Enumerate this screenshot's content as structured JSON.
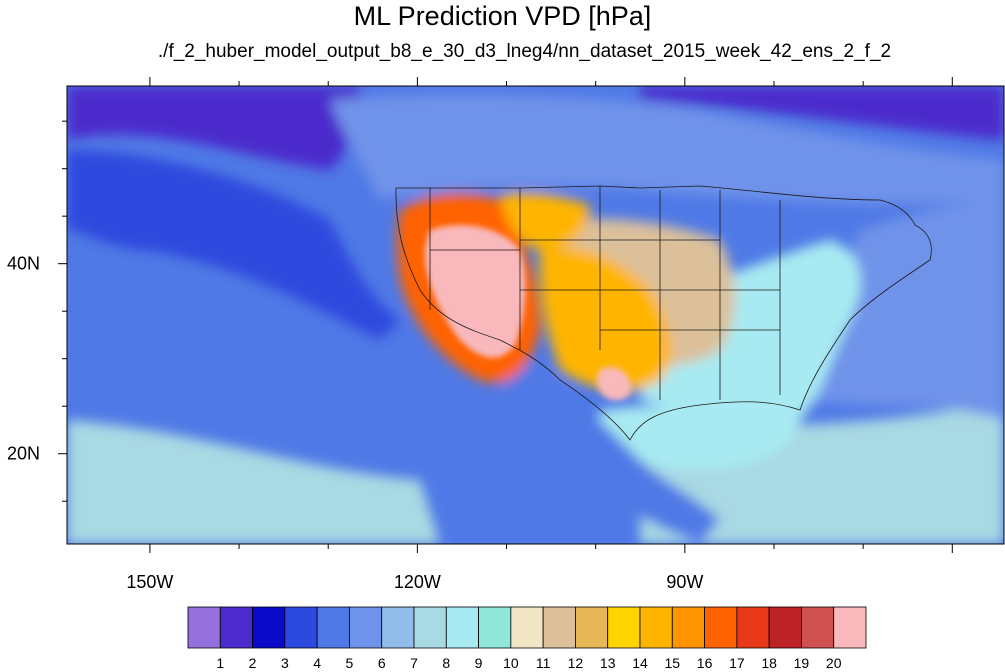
{
  "chart_data": {
    "type": "heatmap",
    "title": "ML Prediction VPD [hPa]",
    "subtitle": "./f_2_huber_model_output_b8_e_30_d3_lneg4/nn_dataset_2015_week_42_ens_2_f_2",
    "x_ticks": [
      {
        "value": -150,
        "label": "150W"
      },
      {
        "value": -120,
        "label": "120W"
      },
      {
        "value": -90,
        "label": "90W"
      }
    ],
    "y_ticks": [
      {
        "value": 40,
        "label": "40N"
      },
      {
        "value": 20,
        "label": "20N"
      }
    ],
    "xlim": [
      -159.3,
      -54.2
    ],
    "ylim": [
      10.5,
      58.7
    ],
    "colorbar": {
      "labels": [
        "1",
        "2",
        "3",
        "4",
        "5",
        "6",
        "7",
        "8",
        "9",
        "10",
        "11",
        "12",
        "13",
        "14",
        "15",
        "16",
        "17",
        "18",
        "19",
        "20"
      ],
      "colors": [
        "#9370db",
        "#4b2bcc",
        "#0a0ac8",
        "#2d4ade",
        "#4f79e6",
        "#6f93ea",
        "#92bdea",
        "#a9d9e3",
        "#a8eaf2",
        "#8fe6d9",
        "#f2e6c6",
        "#dcc09a",
        "#e8b858",
        "#ffd400",
        "#ffb500",
        "#ff9300",
        "#ff6200",
        "#e83818",
        "#bd2227",
        "#cf5050",
        "#f8b8bc"
      ]
    },
    "fields": {
      "ocean_west": "#4f79e6",
      "ocean_north": "#2d4ade",
      "ocean_south": "#a9d9e3",
      "canada": "#6f93ea",
      "arctic": "#4b2bcc",
      "mexico_coast": "#4f79e6",
      "east_us": "#a8eaf2",
      "great_plains": "#dcc09a",
      "southern_plains": "#ffb500",
      "great_basin": "#f8b8bc",
      "west_coast_band": "#ff6200",
      "gulf": "#a8eaf2",
      "atlantic": "#6f93ea"
    }
  }
}
